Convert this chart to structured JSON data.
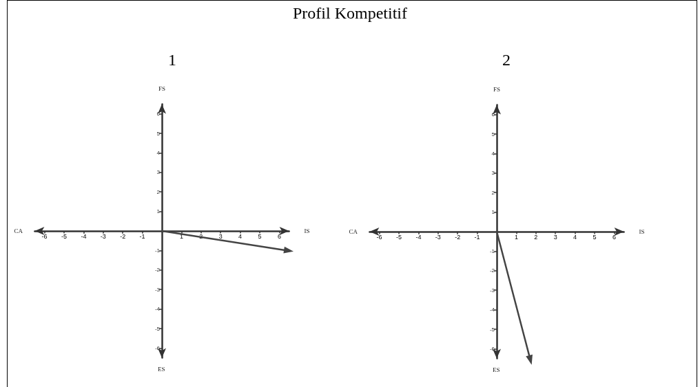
{
  "chart_data": [
    {
      "type": "line",
      "title": "Profil Kompetitif",
      "subtitle": "1",
      "xlabel": "IS",
      "ylabel": "FS",
      "annotations": [
        "CA",
        "ES"
      ],
      "x": [
        0,
        6.4
      ],
      "series": [
        {
          "color": "#444444",
          "values": [
            0,
            -1.0
          ]
        }
      ],
      "xlim": [
        -6.5,
        6.5
      ],
      "ylim": [
        -6.5,
        6.5
      ],
      "xticks": [
        -6,
        -5,
        -4,
        -3,
        -2,
        -1,
        1,
        2,
        3,
        4,
        5,
        6
      ],
      "yticks": [
        -6,
        -5,
        -4,
        -3,
        -2,
        -1,
        1,
        2,
        3,
        4,
        5,
        6
      ],
      "grid": false
    },
    {
      "type": "line",
      "subtitle": "2",
      "xlabel": "IS",
      "ylabel": "FS",
      "annotations": [
        "CA",
        "ES"
      ],
      "x": [
        0,
        1.7
      ],
      "series": [
        {
          "color": "#444444",
          "values": [
            0,
            -6.5
          ]
        }
      ],
      "xlim": [
        -6.5,
        6.5
      ],
      "ylim": [
        -6.5,
        6.5
      ],
      "xticks": [
        -6,
        -5,
        -4,
        -3,
        -2,
        -1,
        1,
        2,
        3,
        4,
        5,
        6
      ],
      "yticks": [
        -6,
        -5,
        -4,
        -3,
        -2,
        -1,
        1,
        2,
        3,
        4,
        5,
        6
      ],
      "grid": false
    }
  ]
}
